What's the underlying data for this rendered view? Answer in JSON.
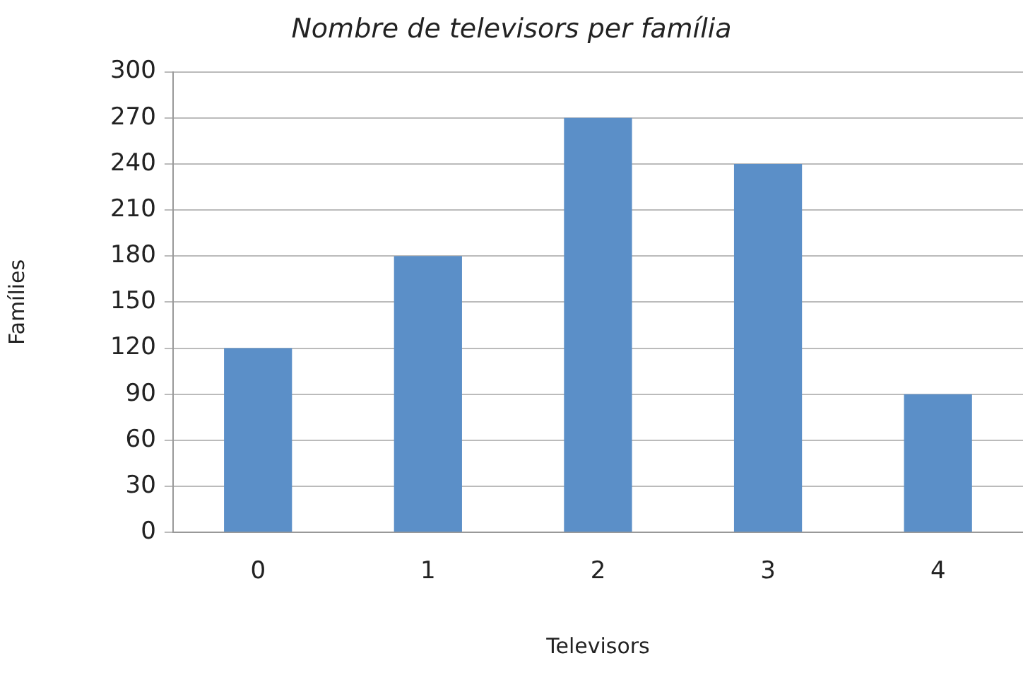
{
  "chart_data": {
    "type": "bar",
    "title": "Nombre de televisors per família",
    "xlabel": "Televisors",
    "ylabel": "Famílies",
    "categories": [
      "0",
      "1",
      "2",
      "3",
      "4"
    ],
    "values": [
      120,
      180,
      270,
      240,
      90
    ],
    "color": "#5b8fc8",
    "ylim": [
      0,
      300
    ],
    "yticks": [
      0,
      30,
      60,
      90,
      120,
      150,
      180,
      210,
      240,
      270,
      300
    ],
    "grid": "y",
    "legend": false
  }
}
